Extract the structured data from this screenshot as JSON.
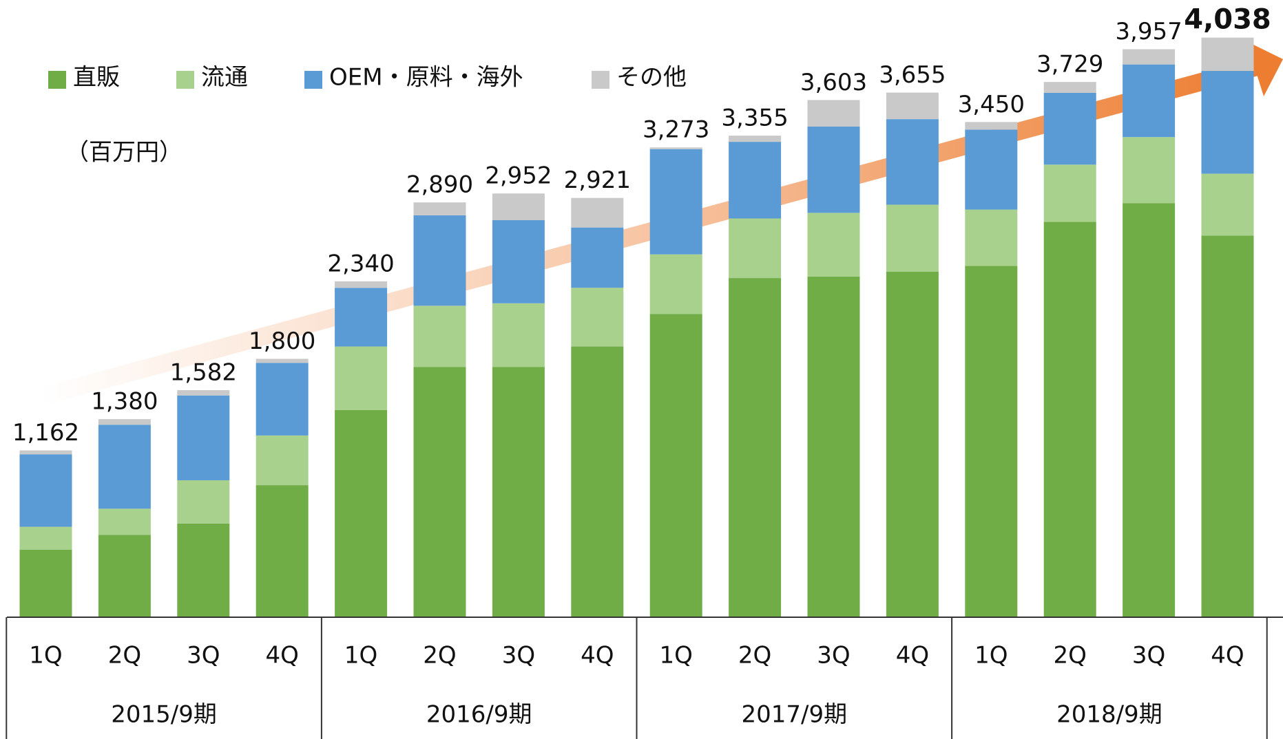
{
  "chart_data": {
    "type": "stacked_bar",
    "unit": "（百万円）",
    "categories": [
      "1Q",
      "2Q",
      "3Q",
      "4Q",
      "1Q",
      "2Q",
      "3Q",
      "4Q",
      "1Q",
      "2Q",
      "3Q",
      "4Q",
      "1Q",
      "2Q",
      "3Q",
      "4Q"
    ],
    "groups": [
      "2015/9期",
      "2016/9期",
      "2017/9期",
      "2018/9期"
    ],
    "series": [
      {
        "name": "直販",
        "color": "#70ad47",
        "values": [
          471,
          574,
          653,
          920,
          1443,
          1744,
          1744,
          1886,
          2113,
          2363,
          2374,
          2408,
          2448,
          2755,
          2885,
          2658
        ]
      },
      {
        "name": "流通",
        "color": "#a9d18e",
        "values": [
          159,
          182,
          301,
          346,
          443,
          426,
          443,
          409,
          415,
          415,
          443,
          466,
          392,
          398,
          460,
          432
        ]
      },
      {
        "name": "OEM・原料・海外",
        "color": "#5b9bd5",
        "values": [
          505,
          585,
          591,
          506,
          409,
          630,
          579,
          420,
          733,
          534,
          602,
          596,
          557,
          500,
          506,
          716
        ]
      },
      {
        "name": "その他",
        "color": "#c9c9c9",
        "values": [
          27,
          39,
          37,
          28,
          45,
          90,
          186,
          206,
          12,
          43,
          184,
          185,
          53,
          76,
          106,
          232
        ]
      }
    ],
    "totals": [
      1162,
      1380,
      1582,
      1800,
      2340,
      2890,
      2952,
      2921,
      3273,
      3355,
      3603,
      3655,
      3450,
      3729,
      3957,
      4038
    ],
    "total_labels": [
      "1,162",
      "1,380",
      "1,582",
      "1,800",
      "2,340",
      "2,890",
      "2,952",
      "2,921",
      "3,273",
      "3,355",
      "3,603",
      "3,655",
      "3,450",
      "3,729",
      "3,957",
      "4,038"
    ],
    "bold_total_index": 15,
    "ylim": [
      0,
      4300
    ]
  }
}
